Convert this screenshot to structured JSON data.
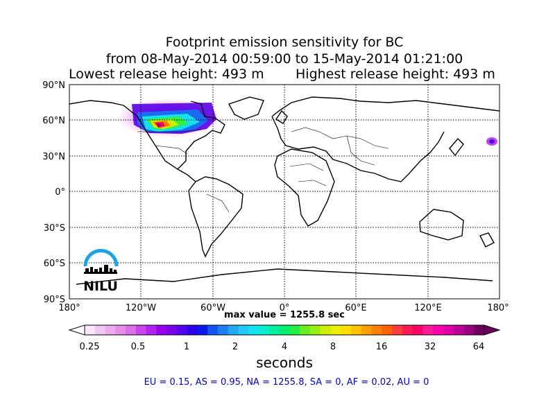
{
  "title": {
    "line1": "Footprint emission sensitivity for BC",
    "line2": "from 08-May-2014 00:59:00 to 15-May-2014 01:21:00",
    "lowest_release": "Lowest release height: 493 m",
    "highest_release": "Highest release height: 493 m"
  },
  "map": {
    "lat_ticks": [
      "90°N",
      "60°N",
      "30°N",
      "0°",
      "30°S",
      "60°S",
      "90°S"
    ],
    "lon_ticks": [
      "180°",
      "120°W",
      "60°W",
      "0°",
      "60°E",
      "120°E",
      "180°"
    ],
    "grid": true,
    "projection": "cylindrical equidistant"
  },
  "logo": {
    "text": "NILU",
    "color": "#1aa3e8"
  },
  "max_value": "max value = 1255.8 sec",
  "colorbar": {
    "tick_labels": [
      "0.25",
      "0.5",
      "1",
      "2",
      "4",
      "8",
      "16",
      "32",
      "64"
    ],
    "units_label": "seconds",
    "colors": [
      "#fbe5fb",
      "#f5c6f5",
      "#eeaaee",
      "#e68de6",
      "#dd6fe8",
      "#cc44ee",
      "#b322f0",
      "#9900ee",
      "#7a00ee",
      "#5500ee",
      "#2a00ee",
      "#0a1aee",
      "#1255f0",
      "#1a80f2",
      "#22a8f4",
      "#22c8f4",
      "#14e0ee",
      "#08eecc",
      "#00eea0",
      "#00ee70",
      "#22ee44",
      "#66ee22",
      "#99ee11",
      "#ccee00",
      "#eeee00",
      "#ffdd00",
      "#ffc000",
      "#ffa000",
      "#ff8000",
      "#ff6000",
      "#ff3c3c",
      "#ff1a55",
      "#ff0066",
      "#ff1a99",
      "#ff00aa",
      "#e000aa",
      "#bb0099",
      "#990080",
      "#700060"
    ]
  },
  "summary": "EU = 0.15,  AS = 0.95,  NA = 1255.8,  SA = 0,  AF = 0.02,  AU = 0"
}
